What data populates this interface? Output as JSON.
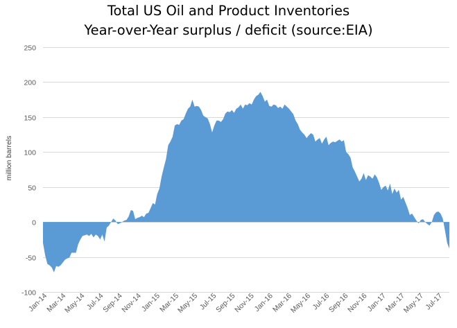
{
  "chart_data": {
    "type": "area",
    "title": "Total US Oil and Product Inventories",
    "subtitle": "Year-over-Year surplus / deficit (source:EIA)",
    "xlabel": "",
    "ylabel": "million barrels",
    "ylim": [
      -100,
      250
    ],
    "y_ticks": [
      250,
      200,
      150,
      100,
      50,
      0,
      -50,
      -100
    ],
    "grid": true,
    "legend": "none",
    "color": "#5B9BD5",
    "x_tick_labels": [
      "Jan-14",
      "Mar-14",
      "May-14",
      "Jul-14",
      "Sep-14",
      "Nov-14",
      "Jan-15",
      "Mar-15",
      "May-15",
      "Jul-15",
      "Sep-15",
      "Nov-15",
      "Jan-16",
      "Mar-16",
      "May-16",
      "Jul-16",
      "Sep-16",
      "Nov-16",
      "Jan-17",
      "Mar-17",
      "May-17",
      "Jul-17"
    ],
    "series": [
      {
        "values": [
          -30,
          -48,
          -60,
          -62,
          -65,
          -72,
          -63,
          -64,
          -62,
          -58,
          -54,
          -52,
          -51,
          -44,
          -44,
          -44,
          -32,
          -25,
          -20,
          -19,
          -18,
          -20,
          -17,
          -22,
          -18,
          -20,
          -25,
          -18,
          -28,
          -8,
          -5,
          0,
          5,
          2,
          -3,
          -2,
          0,
          2,
          3,
          8,
          17,
          16,
          4,
          6,
          7,
          9,
          7,
          12,
          13,
          20,
          27,
          25,
          40,
          48,
          65,
          78,
          90,
          110,
          115,
          122,
          138,
          140,
          139,
          145,
          147,
          155,
          162,
          165,
          175,
          165,
          166,
          165,
          160,
          152,
          150,
          148,
          140,
          128,
          138,
          145,
          145,
          143,
          147,
          155,
          158,
          157,
          160,
          156,
          162,
          164,
          168,
          162,
          168,
          167,
          170,
          168,
          175,
          180,
          182,
          186,
          180,
          172,
          175,
          166,
          165,
          168,
          167,
          163,
          165,
          162,
          168,
          165,
          162,
          158,
          154,
          145,
          140,
          132,
          128,
          125,
          120,
          124,
          127,
          125,
          115,
          118,
          120,
          112,
          118,
          122,
          110,
          113,
          115,
          114,
          116,
          118,
          115,
          117,
          100,
          97,
          92,
          78,
          72,
          65,
          58,
          62,
          70,
          60,
          67,
          65,
          62,
          68,
          64,
          56,
          46,
          50,
          52,
          45,
          55,
          40,
          48,
          42,
          46,
          32,
          36,
          28,
          20,
          10,
          12,
          7,
          2,
          -2,
          3,
          4,
          0,
          -3,
          -5,
          0,
          10,
          14,
          15,
          12,
          5,
          -12,
          -30,
          -38
        ]
      }
    ]
  }
}
